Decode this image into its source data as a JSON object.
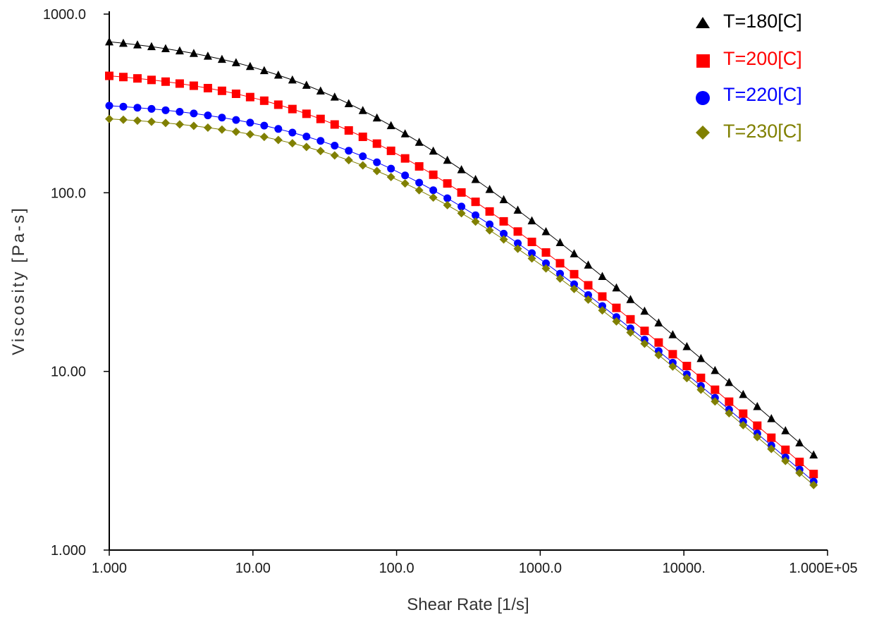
{
  "chart_data": {
    "type": "line",
    "title": "",
    "xlabel": "Shear Rate [1/s]",
    "ylabel": "Viscosity [Pa-s]",
    "xscale": "log",
    "yscale": "log",
    "xlim": [
      1,
      100000
    ],
    "ylim": [
      1,
      1000
    ],
    "xticks": [
      {
        "value": 1,
        "label": "1.000"
      },
      {
        "value": 10,
        "label": "10.00"
      },
      {
        "value": 100,
        "label": "100.0"
      },
      {
        "value": 1000,
        "label": "1000.0"
      },
      {
        "value": 10000,
        "label": "10000."
      },
      {
        "value": 100000,
        "label": "1.000E+05"
      }
    ],
    "yticks": [
      {
        "value": 1,
        "label": "1.000"
      },
      {
        "value": 10,
        "label": "10.00"
      },
      {
        "value": 100,
        "label": "100.0"
      },
      {
        "value": 1000,
        "label": "1000.0"
      }
    ],
    "grid": false,
    "legend_position": "top-right",
    "x_points_range": [
      1,
      80000
    ],
    "points_per_series": 51,
    "series": [
      {
        "name": "T=180[C]",
        "color": "#000000",
        "marker": "triangle",
        "eta0": 800,
        "lambda": 0.03,
        "n": 0.3
      },
      {
        "name": "T=200[C]",
        "color": "#ff0000",
        "marker": "square",
        "eta0": 505,
        "lambda": 0.022,
        "n": 0.3
      },
      {
        "name": "T=220[C]",
        "color": "#0000ff",
        "marker": "circle",
        "eta0": 335,
        "lambda": 0.014,
        "n": 0.3
      },
      {
        "name": "T=230[C]",
        "color": "#808000",
        "marker": "diamond",
        "eta0": 280,
        "lambda": 0.0115,
        "n": 0.3
      }
    ]
  }
}
